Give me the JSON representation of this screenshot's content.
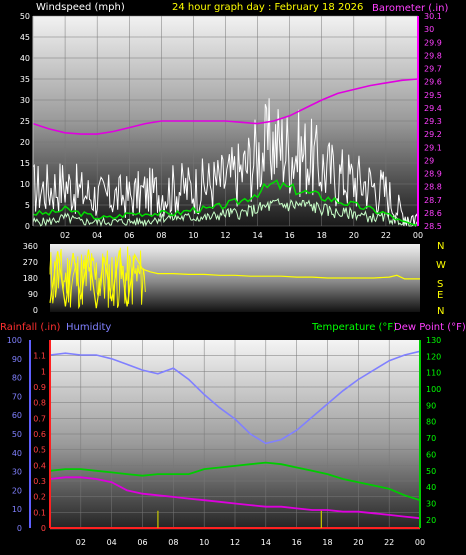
{
  "header": {
    "windspeed_label": "Windspeed (mph)",
    "title": "24 hour graph day : February 18 2026",
    "barometer_label": "Barometer (.in)"
  },
  "legend2": {
    "rainfall_label": "Rainfall (.in)",
    "humidity_label": "Humidity",
    "temperature_label": "Temperature (°F)",
    "dewpoint_label": "Dew Point (°F)"
  },
  "compass": [
    "N",
    "W",
    "S",
    "E",
    "N"
  ],
  "colors": {
    "wind_avg": "#00dd00",
    "wind_gust": "#ffffff",
    "barometer": "#e000e0",
    "direction": "#ffff00",
    "humidity": "#8080ff",
    "temperature": "#00cc00",
    "dewpoint": "#dd00dd",
    "rain": "#ff2020",
    "title": "#ffff00",
    "header_white": "#ffffff"
  },
  "chart_data": [
    {
      "type": "line",
      "title": "24 hour graph day : February 18 2026",
      "x_ticks": [
        "02",
        "04",
        "06",
        "08",
        "10",
        "12",
        "14",
        "16",
        "18",
        "20",
        "22",
        "00"
      ],
      "x_range": [
        0,
        24
      ],
      "ylabel_left": "Windspeed (mph)",
      "y_ticks_left": [
        "0",
        "5",
        "10",
        "15",
        "20",
        "25",
        "30",
        "35",
        "40",
        "45",
        "50"
      ],
      "ylim_left": [
        0,
        50
      ],
      "ylabel_right": "Barometer (.in)",
      "y_ticks_right": [
        "28.5",
        "28.6",
        "28.7",
        "28.8",
        "28.9",
        "29",
        "29.1",
        "29.2",
        "29.3",
        "29.4",
        "29.5",
        "29.6",
        "29.7",
        "29.8",
        "29.9",
        "30",
        "30.1"
      ],
      "ylim_right": [
        28.5,
        30.1
      ],
      "grid": true,
      "series": [
        {
          "axis": "right",
          "x": [
            0,
            1,
            2,
            3,
            4,
            5,
            6,
            7,
            8,
            9,
            10,
            11,
            12,
            13,
            14,
            15,
            16,
            17,
            18,
            19,
            20,
            21,
            22,
            23,
            24
          ],
          "values": [
            29.28,
            29.24,
            29.21,
            29.2,
            29.2,
            29.22,
            29.25,
            29.28,
            29.3,
            29.3,
            29.3,
            29.3,
            29.3,
            29.29,
            29.28,
            29.3,
            29.34,
            29.4,
            29.46,
            29.51,
            29.54,
            29.57,
            29.59,
            29.61,
            29.62
          ]
        },
        {
          "axis": "left",
          "x": [
            0,
            1,
            2,
            3,
            4,
            5,
            6,
            7,
            8,
            9,
            10,
            11,
            12,
            13,
            14,
            15,
            16,
            17,
            18,
            19,
            20,
            21,
            22,
            23,
            24
          ],
          "values": [
            9,
            9,
            10,
            8,
            7,
            7,
            7,
            8,
            8,
            9,
            9,
            10,
            11,
            13,
            17,
            20,
            18,
            17,
            14,
            12,
            11,
            10,
            8,
            3,
            2
          ]
        },
        {
          "axis": "left",
          "x": [
            0,
            1,
            2,
            3,
            4,
            5,
            6,
            7,
            8,
            9,
            10,
            11,
            12,
            13,
            14,
            15,
            16,
            17,
            18,
            19,
            20,
            21,
            22,
            23,
            24
          ],
          "values": [
            3,
            3,
            4,
            3,
            2,
            2,
            3,
            3,
            3,
            3,
            4,
            4,
            5,
            6,
            8,
            10,
            9,
            8,
            7,
            6,
            5,
            4,
            3,
            1,
            0
          ]
        },
        {
          "axis": "left",
          "x": [
            0,
            1,
            2,
            3,
            4,
            5,
            6,
            7,
            8,
            9,
            10,
            11,
            12,
            13,
            14,
            15,
            16,
            17,
            18,
            19,
            20,
            21,
            22,
            23,
            24
          ],
          "values": [
            1,
            1,
            2,
            1,
            1,
            1,
            1,
            1,
            2,
            2,
            2,
            2,
            3,
            3,
            4,
            5,
            5,
            5,
            4,
            3,
            3,
            2,
            2,
            1,
            0
          ]
        }
      ]
    },
    {
      "type": "line",
      "x_range": [
        0,
        24
      ],
      "y_ticks": [
        "0",
        "90",
        "180",
        "270",
        "360"
      ],
      "ylim": [
        0,
        360
      ],
      "series": [
        {
          "x": [
            0,
            0.5,
            1,
            1.5,
            2,
            2.5,
            3,
            3.5,
            4,
            4.5,
            5,
            5.5,
            6,
            6.5,
            7,
            8,
            9,
            10,
            11,
            12,
            13,
            14,
            15,
            16,
            17,
            18,
            19,
            20,
            21,
            22,
            22.5,
            23,
            24
          ],
          "values": [
            40,
            330,
            20,
            320,
            60,
            340,
            10,
            300,
            50,
            335,
            20,
            310,
            230,
            215,
            205,
            205,
            200,
            200,
            195,
            195,
            190,
            190,
            190,
            185,
            185,
            180,
            180,
            180,
            180,
            185,
            195,
            175,
            175
          ]
        }
      ]
    },
    {
      "type": "line",
      "x_ticks": [
        "02",
        "04",
        "06",
        "08",
        "10",
        "12",
        "14",
        "16",
        "18",
        "20",
        "22",
        "00"
      ],
      "x_range": [
        0,
        24
      ],
      "ylabel_left": "Rainfall (.in)",
      "y_ticks_rain": [
        "0",
        "0.1",
        "0.2",
        "0.3",
        "0.4",
        "0.5",
        "0.6",
        "0.7",
        "0.8",
        "0.9",
        "1",
        "1.1"
      ],
      "ylim_rain": [
        0,
        1.2
      ],
      "y_ticks_humidity": [
        "0",
        "10",
        "20",
        "30",
        "40",
        "50",
        "60",
        "70",
        "80",
        "90",
        "100"
      ],
      "ylim_humidity": [
        0,
        100
      ],
      "ylabel_right": "Temperature (°F)",
      "y_ticks_right": [
        "20",
        "30",
        "40",
        "50",
        "60",
        "70",
        "80",
        "90",
        "100",
        "110",
        "120",
        "130"
      ],
      "ylim_right": [
        15,
        130
      ],
      "grid": true,
      "series": [
        {
          "name": "Humidity",
          "x": [
            0,
            1,
            2,
            3,
            4,
            5,
            6,
            7,
            8,
            9,
            10,
            11,
            12,
            13,
            14,
            15,
            16,
            17,
            18,
            19,
            20,
            21,
            22,
            23,
            24
          ],
          "values": [
            92,
            93,
            92,
            92,
            90,
            87,
            84,
            82,
            85,
            79,
            71,
            64,
            58,
            50,
            45,
            47,
            52,
            59,
            66,
            73,
            79,
            84,
            89,
            92,
            94
          ]
        },
        {
          "name": "Temperature (°F)",
          "x": [
            0,
            1,
            2,
            3,
            4,
            5,
            6,
            7,
            8,
            9,
            10,
            11,
            12,
            13,
            14,
            15,
            16,
            17,
            18,
            19,
            20,
            21,
            22,
            23,
            24
          ],
          "values": [
            50,
            51,
            51,
            50,
            49,
            48,
            47,
            48,
            48,
            48,
            51,
            52,
            53,
            54,
            55,
            54,
            52,
            50,
            48,
            45,
            43,
            41,
            39,
            35,
            32
          ]
        },
        {
          "name": "Dew Point (°F)",
          "x": [
            0,
            1,
            2,
            3,
            4,
            5,
            6,
            7,
            8,
            9,
            10,
            11,
            12,
            13,
            14,
            15,
            16,
            17,
            18,
            19,
            20,
            21,
            22,
            23,
            24
          ],
          "values": [
            45,
            46,
            46,
            45,
            43,
            38,
            36,
            35,
            34,
            33,
            32,
            31,
            30,
            29,
            28,
            28,
            27,
            26,
            26,
            25,
            25,
            24,
            23,
            22,
            21
          ]
        },
        {
          "name": "Rainfall (.in)",
          "x": [
            0,
            24
          ],
          "values": [
            0,
            0
          ]
        }
      ],
      "rain_marks_x": [
        7.0,
        17.6
      ]
    }
  ]
}
